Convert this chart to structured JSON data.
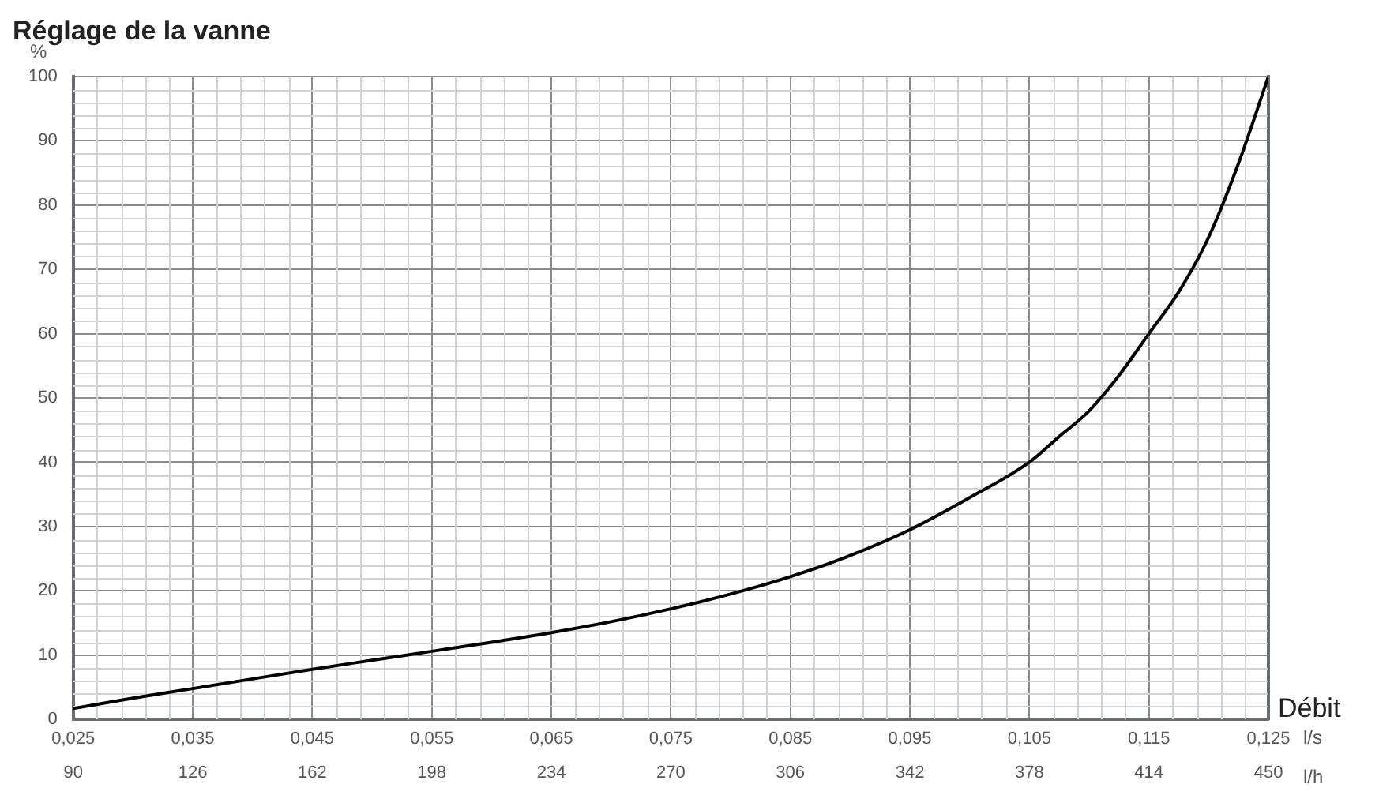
{
  "chart_data": {
    "type": "line",
    "title": "Réglage de la vanne",
    "ylabel": "%",
    "xlabel": "Débit",
    "x2label": "l/h",
    "annotations": [
      "l/s"
    ],
    "x": [
      0.025,
      0.03,
      0.035,
      0.04,
      0.045,
      0.05,
      0.055,
      0.06,
      0.065,
      0.07,
      0.075,
      0.08,
      0.085,
      0.09,
      0.095,
      0.1,
      0.105,
      0.1075,
      0.11,
      0.1125,
      0.115,
      0.1175,
      0.12,
      0.1225,
      0.125
    ],
    "series": [
      {
        "color": "#000000",
        "values": [
          1.7,
          3.3,
          4.8,
          6.3,
          7.8,
          9.2,
          10.6,
          12.0,
          13.5,
          15.2,
          17.2,
          19.5,
          22.2,
          25.5,
          29.5,
          34.5,
          40,
          44,
          48,
          53.5,
          60,
          66.5,
          75,
          86.5,
          100
        ]
      }
    ],
    "xlim": [
      0.025,
      0.125
    ],
    "xticks": [
      {
        "value": 0.025,
        "label": "0,025"
      },
      {
        "value": 0.035,
        "label": "0,035"
      },
      {
        "value": 0.045,
        "label": "0,045"
      },
      {
        "value": 0.055,
        "label": "0,055"
      },
      {
        "value": 0.065,
        "label": "0,065"
      },
      {
        "value": 0.075,
        "label": "0,075"
      },
      {
        "value": 0.085,
        "label": "0,085"
      },
      {
        "value": 0.095,
        "label": "0,095"
      },
      {
        "value": 0.105,
        "label": "0,105"
      },
      {
        "value": 0.115,
        "label": "0,115"
      },
      {
        "value": 0.125,
        "label": "0,125"
      }
    ],
    "x2lim": [
      90,
      450
    ],
    "x2ticks": [
      90,
      126,
      162,
      198,
      234,
      270,
      306,
      342,
      378,
      414,
      450
    ],
    "ylim": [
      0,
      100
    ],
    "yticks": [
      0,
      10,
      20,
      30,
      40,
      50,
      60,
      70,
      80,
      90,
      100
    ],
    "grid": true,
    "legend": false,
    "marker": "none",
    "line_style": "solid"
  }
}
